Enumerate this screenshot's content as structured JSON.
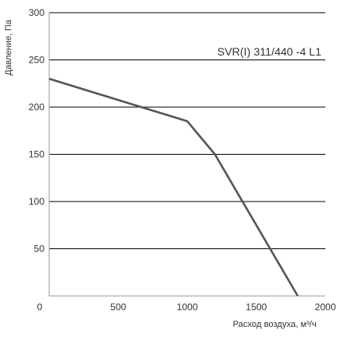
{
  "chart_data": {
    "type": "line",
    "title": "",
    "xlabel": "Расход воздуха, м³/ч",
    "ylabel": "Давление, Па",
    "xlim": [
      0,
      2000
    ],
    "ylim": [
      0,
      300
    ],
    "x_ticks": [
      0,
      500,
      1000,
      1500,
      2000
    ],
    "y_ticks": [
      50,
      100,
      150,
      200,
      250,
      300
    ],
    "grid": "horizontal",
    "series": [
      {
        "name": "SVR(I) 311/440 -4 L1",
        "x": [
          0,
          1000,
          1200,
          1800
        ],
        "y": [
          230,
          185,
          150,
          0
        ]
      }
    ],
    "colors": {
      "line": "#555555",
      "grid": "#000000",
      "axis": "#333333"
    }
  }
}
